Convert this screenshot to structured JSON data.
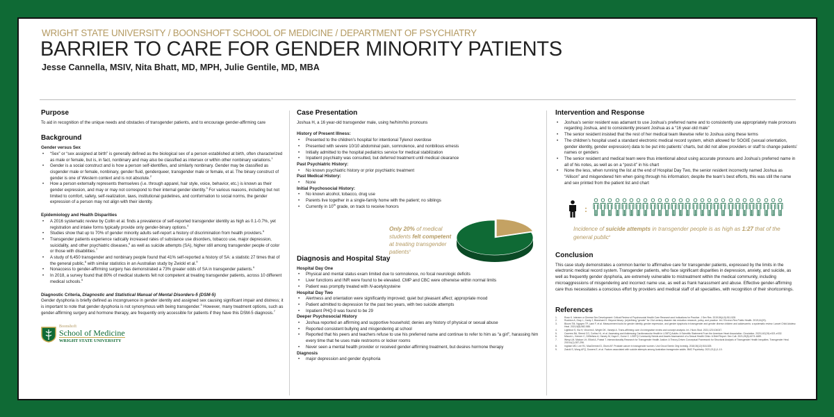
{
  "header": {
    "org": "WRIGHT STATE UNIVERSITY / BOONSHOFT SCHOOL OF MEDICINE / DEPARTMENT OF PSYCHIATRY",
    "title": "BARRIER TO CARE FOR GENDER MINORITY PATIENTS",
    "authors": "Jesse Cannella, MSIV, Nita Bhatt, MD, MPH, Julie Gentile, MD, MBA"
  },
  "colors": {
    "border": "#0f6a35",
    "gold": "#b49a62",
    "green": "#0f6a35",
    "pie_gold": "#c4a263",
    "icon_green": "#2e7a5a"
  },
  "purpose": {
    "heading": "Purpose",
    "text": "To aid in recognition of the unique needs and obstacles of transgender patients, and to encourage gender-affirming care"
  },
  "background": {
    "heading": "Background",
    "gender_sex": {
      "heading": "Gender versus Sex",
      "bullets": [
        [
          {
            "t": "“Sex” or “sex assigned at birth” is generally defined as the biological sex of a person established at birth, often characterized as male or female, but is, in fact, nonbinary and may also be classified as intersex or within other nonbinary variations."
          },
          {
            "sup": "1"
          }
        ],
        [
          {
            "t": "Gender is a social construct and is how a person self-identifies, and similarly nonbinary. Gender may be classified as cisgender male or female, nonbinary, gender fluid, genderqueer, transgender male or female, et al. The binary construct of gender is one of Western context and is not absolute."
          },
          {
            "sup": "2"
          }
        ],
        [
          {
            "t": "How a person externally represents themselves (i.e. through apparel, hair style, voice, behavior, etc.) is known as their gender expression, and may or may not correspond to their internal gender identity."
          },
          {
            "sup": "3"
          },
          {
            "t": " For various reasons, including but not limited to comfort, safety, self-realization, laws, institutional guidelines, and conformation to social norms, the gender expression of a person may not align with their identity."
          }
        ]
      ]
    },
    "epidemiology": {
      "heading": "Epidemiology and Health Disparities",
      "bullets": [
        [
          {
            "t": "A 2016 systematic review by Collin et al. finds a prevalence of self-reported transgender identity as high as 0.1-0.7%, yet registration and intake forms typically provide only gender-binary options."
          },
          {
            "sup": "4"
          }
        ],
        [
          {
            "t": "Studies show that up to 70% of gender minority adults self-report a history of discrimination from health providers."
          },
          {
            "sup": "5"
          }
        ],
        [
          {
            "t": "Transgender patients experience radically increased rates of substance use disorders, tobacco use, major depression, suicidality, and other psychiatric diseases,"
          },
          {
            "sup": "6"
          },
          {
            "t": " as well as suicide attempts (SA), higher still among transgender people of color or those with disabilities."
          },
          {
            "sup": "7"
          }
        ],
        [
          {
            "t": "A study of 6,450 transgender and nonbinary people found that 41% self-reported a history of SA: a statistic 27 times that of the general public,"
          },
          {
            "sup": "8"
          },
          {
            "t": " with similar statistics in an Australian study by Zwickl et al."
          },
          {
            "sup": "9"
          }
        ],
        [
          {
            "t": "Nonaccess to gender-affirming surgery has demonstrated a 73% greater odds of SA in transgender patients."
          },
          {
            "sup": "9"
          }
        ],
        [
          {
            "t": "In 2018, a survey found that 80% of medical students felt not competent at treating transgender patients, across 10 different medical schools."
          },
          {
            "sup": "5"
          }
        ]
      ]
    },
    "diagnostic": {
      "heading": [
        {
          "b": "Diagnostic Criteria, "
        },
        {
          "i": "Diagnostic and Statistical Manual of Mental Disorders-5 (DSM-5)"
        }
      ],
      "text": [
        {
          "t": "Gender dysphoria is briefly defined as incongruence in gender identity and assigned sex causing significant impair and distress; it is important to note that gender dysphoria is not synonymous with being transgender."
        },
        {
          "sup": "3"
        },
        {
          "t": " However, many treatment options, such as gender-affirming surgery and hormone therapy, are frequently only accessible for patients if they have this DSM-5 diagnosis."
        },
        {
          "sup": "7"
        }
      ]
    }
  },
  "logo": {
    "line1": "Boonshoft",
    "line2": "School of Medicine",
    "line3": "WRIGHT STATE UNIVERSITY"
  },
  "case": {
    "heading": "Case Presentation",
    "intro": "Joshua H, a 16 year-old transgender male, using he/him/his pronouns",
    "sections": [
      {
        "heading": "History of Present Illness:",
        "bullets": [
          [
            {
              "t": "Presented to the children’s hospital for intentional Tylenol overdose"
            }
          ],
          [
            {
              "t": "Presented with severe 10/10 abdominal pain, somnolence, and nonbilious emesis"
            }
          ],
          [
            {
              "t": "Initially admitted to the hospital pediatrics service for medical stabilization"
            }
          ],
          [
            {
              "t": "Inpatient psychiatry was consulted, but deferred treatment until medical clearance"
            }
          ]
        ]
      },
      {
        "heading": "Past Psychiatric History:",
        "bullets": [
          [
            {
              "t": "No known psychiatric history or prior psychiatric treatment"
            }
          ]
        ]
      },
      {
        "heading": "Past Medical History:",
        "bullets": [
          [
            {
              "t": "None"
            }
          ]
        ]
      },
      {
        "heading": "Initial Psychosocial History:",
        "bullets": [
          [
            {
              "t": "No known alcohol, tobacco, drug use"
            }
          ],
          [
            {
              "t": "Parents live together in a single-family home with the patient; no siblings"
            }
          ],
          [
            {
              "t": "Currently in 10"
            },
            {
              "sup": "th"
            },
            {
              "t": " grade, on track to receive honors"
            }
          ]
        ]
      }
    ]
  },
  "pie": {
    "caption": [
      {
        "b": "Only 20%"
      },
      {
        "t": " of medical students "
      },
      {
        "b": "felt competent"
      },
      {
        "t": " at treating transgender patients"
      },
      {
        "sup": "5"
      }
    ],
    "slices": [
      {
        "label": "felt competent",
        "percent": 20,
        "color": "#c4a263"
      },
      {
        "label": "not competent",
        "percent": 80,
        "color": "#0f6a35"
      }
    ]
  },
  "diagnosis": {
    "heading": "Diagnosis and Hospital Stay",
    "sections": [
      {
        "heading": "Hospital Day One",
        "bullets": [
          [
            {
              "t": "Physical and mental status exam limited due to somnolence, no focal neurologic deficits"
            }
          ],
          [
            {
              "t": "Liver functions and INR were found to be elevated. CMP and CBC were otherwise within normal limits"
            }
          ],
          [
            {
              "t": "Patient was promptly treated with "
            },
            {
              "i": "N"
            },
            {
              "t": "-acetylcysteine"
            }
          ]
        ]
      },
      {
        "heading": "Hospital Day Two",
        "bullets": [
          [
            {
              "t": "Alertness and orientation were significantly improved; quiet but pleasant affect; appropriate mood"
            }
          ],
          [
            {
              "t": "Patient admitted to depression for the past two years, with two suicide attempts"
            }
          ],
          [
            {
              "t": "Inpatient PHQ-9 was found to be 29"
            }
          ]
        ]
      },
      {
        "heading": "Deeper Psychosocial History",
        "bullets": [
          [
            {
              "t": "Joshua reported an affirming and supportive household; denies any history of physical or sexual abuse"
            }
          ],
          [
            {
              "t": "Reported consistent bullying and misgendering at school"
            }
          ],
          [
            {
              "t": "Reported that his peers and teachers refuse to use his preferred name and continue to refer to him as “a girl”, harassing him every time that he uses male restrooms or locker rooms"
            }
          ],
          [
            {
              "t": "Never seen a mental health provider or received gender-affirming treatment, but desires hormone therapy"
            }
          ]
        ]
      },
      {
        "heading": "Diagnosis",
        "bullets": [
          [
            {
              "t": "major depression and gender dysphoria"
            }
          ]
        ]
      }
    ]
  },
  "intervention": {
    "heading": "Intervention and Response",
    "bullets": [
      [
        {
          "t": "Joshua’s senior resident was adamant to use Joshua’s preferred name and to consistently use appropriately male pronouns regarding Joshua, and to consistently present Joshua as a “16 year-old male”"
        }
      ],
      [
        {
          "t": "The senior resident insisted that the rest of her medical team likewise refer to Joshua using these terms"
        }
      ],
      [
        {
          "t": "The children’s hospital used a standard electronic medical record system, which allowed for SOGIE (sexual orientation, gender identity, gender expression) data to be put into patients’ charts, but did not allow providers or staff to change patients’ names or genders"
        }
      ],
      [
        {
          "t": "The senior resident and medical team were thus intentional about using accurate pronouns and Joshua’s preferred name in all of his notes, as well as on a “post-it” in his chart"
        }
      ],
      [
        {
          "t": "None the less, when running the list at the end of Hospital Day Two, the senior resident incorrectly named Joshua as “Allison” and misgendered him when going through his information; despite the team’s best efforts, this was still the name and sex printed from the patient list and chart"
        }
      ]
    ]
  },
  "ratio": {
    "general_public": 1,
    "transgender": 27,
    "separator": ":",
    "caption": [
      {
        "t": "Incidence of "
      },
      {
        "b": "suicide attempts"
      },
      {
        "t": " in transgender people is as high as "
      },
      {
        "b": "1:27"
      },
      {
        "t": " that of the general public"
      },
      {
        "sup": "8"
      }
    ]
  },
  "conclusion": {
    "heading": "Conclusion",
    "text": "This case study demonstrates a common barrier to affirmative care for transgender patients, expressed by the limits in the electronic medical record system. Transgender patients, who face significant disparities in depression, anxiety, and suicide, as well as frequently gender dysphoria, are extremely vulnerable to mistreatment within the medical community, including microaggressions of misgendering and incorrect name use, as well as frank harassment and abuse. Effective gender-affirming care thus necessitates a conscious effort by providers and medical staff of all specialties, with recognition of their shortcomings."
  },
  "references": {
    "heading": "References",
    "items": [
      "Rosn K. Intersex or Diverse Sex Development: Critical Review of Psychosocial Health Care Research and Indications for Practice. J Sex Res. 2019;56(4-5):511-528.",
      "Rushton A, Gray L, Canty J, Blanchard K. Beyond binary: (re)defining “gender” for 21st century disaster risk reduction research, policy, and practice. Int J Environ Res Public Health. 2019;16(20).",
      "Bloom TM, Nguyen TP, Lami F, et al. Measurement tools for gender identity, gender expression, and gender dysphoria in transgender and gender diverse children and adolescents: a systematic review. Lancet Child Adolesc Heal. 2021;5(8):582-588.",
      "Lightfoot S, Kia H, Vincent A, Wright DK, Vandyk A. Trans-affirming care: An integrative review and concept analysis. Int J Nurs Stud. 2021;123:104047.",
      "Caceres BA, Streed CG, Corliss HL, et al. Assessing and Addressing Cardiovascular Health in LGBTQ Adults: A Scientific Statement From the American Heart Association. Circulation. 2020;142(19):e321-e332.",
      "Mizock L, Kenner C, DiStefano A, Harvey M, Kaya K, Gurse C. LGBTQ Community Needs and Assets Assessment of a Sexual Health Clinic: A Brief Report. Sex Cult. 2021;25(5):1673-1689.",
      "Wesp LM, Malcoe LH, Elliott A, Poteat T. Intersectionality Research for Transgender Health Justice: A Theory-Driven Conceptual Framework for Structural Analysis of Transgender Health Inequities. Transgender Heal. 2019;4(1):287-296.",
      "Ingham MD, Lee RJ, MacDermed D, Olumi AF. Prostate cancer in transgender women. Urol Oncol Semin Orig Investig. 2018;36(12):518-525.",
      "Zwickl S, Wong AFQ, Dowers E, et al. Factors associated with suicide attempts among Australian transgender adults. BMC Psychiatry. 2021;21(1):1-10."
    ]
  }
}
